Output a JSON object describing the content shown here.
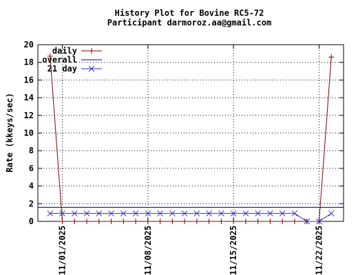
{
  "chart_data": {
    "type": "line",
    "title": "History Plot for Bovine RC5-72",
    "subtitle": "Participant darmoroz.aa@gmail.com",
    "xlabel": "",
    "ylabel": "Rate (kkeys/sec)",
    "ylim": [
      0,
      20
    ],
    "yticks": [
      0,
      2,
      4,
      6,
      8,
      10,
      12,
      14,
      16,
      18,
      20
    ],
    "xlim": [
      "2025-10-30",
      "2025-11-24"
    ],
    "xticks": [
      "11/01/2025",
      "11/08/2025",
      "11/15/2025",
      "11/22/2025"
    ],
    "grid": true,
    "legend": "top-left",
    "series": [
      {
        "name": "daily",
        "color": "#800000",
        "marker": "plus",
        "x": [
          "2025-10-31",
          "2025-11-01",
          "2025-11-02",
          "2025-11-03",
          "2025-11-04",
          "2025-11-05",
          "2025-11-06",
          "2025-11-07",
          "2025-11-08",
          "2025-11-09",
          "2025-11-10",
          "2025-11-11",
          "2025-11-12",
          "2025-11-13",
          "2025-11-14",
          "2025-11-15",
          "2025-11-16",
          "2025-11-17",
          "2025-11-18",
          "2025-11-19",
          "2025-11-20",
          "2025-11-21",
          "2025-11-22",
          "2025-11-23"
        ],
        "y": [
          18.7,
          0,
          0,
          0,
          0,
          0,
          0,
          0,
          0,
          0,
          0,
          0,
          0,
          0,
          0,
          0,
          0,
          0,
          0,
          0,
          0,
          0,
          0,
          18.6
        ]
      },
      {
        "name": "overall",
        "color": "#000080",
        "marker": "none",
        "x": [
          "2025-10-30",
          "2025-11-24"
        ],
        "y": [
          1.6,
          1.6
        ]
      },
      {
        "name": "21 day",
        "color": "#3030c0",
        "marker": "cross",
        "x": [
          "2025-10-31",
          "2025-11-01",
          "2025-11-02",
          "2025-11-03",
          "2025-11-04",
          "2025-11-05",
          "2025-11-06",
          "2025-11-07",
          "2025-11-08",
          "2025-11-09",
          "2025-11-10",
          "2025-11-11",
          "2025-11-12",
          "2025-11-13",
          "2025-11-14",
          "2025-11-15",
          "2025-11-16",
          "2025-11-17",
          "2025-11-18",
          "2025-11-19",
          "2025-11-20",
          "2025-11-21",
          "2025-11-22",
          "2025-11-23"
        ],
        "y": [
          0.9,
          0.9,
          0.9,
          0.9,
          0.9,
          0.9,
          0.9,
          0.9,
          0.9,
          0.9,
          0.9,
          0.9,
          0.9,
          0.9,
          0.9,
          0.9,
          0.9,
          0.9,
          0.9,
          0.9,
          0.9,
          0,
          0,
          0.9
        ]
      }
    ]
  }
}
